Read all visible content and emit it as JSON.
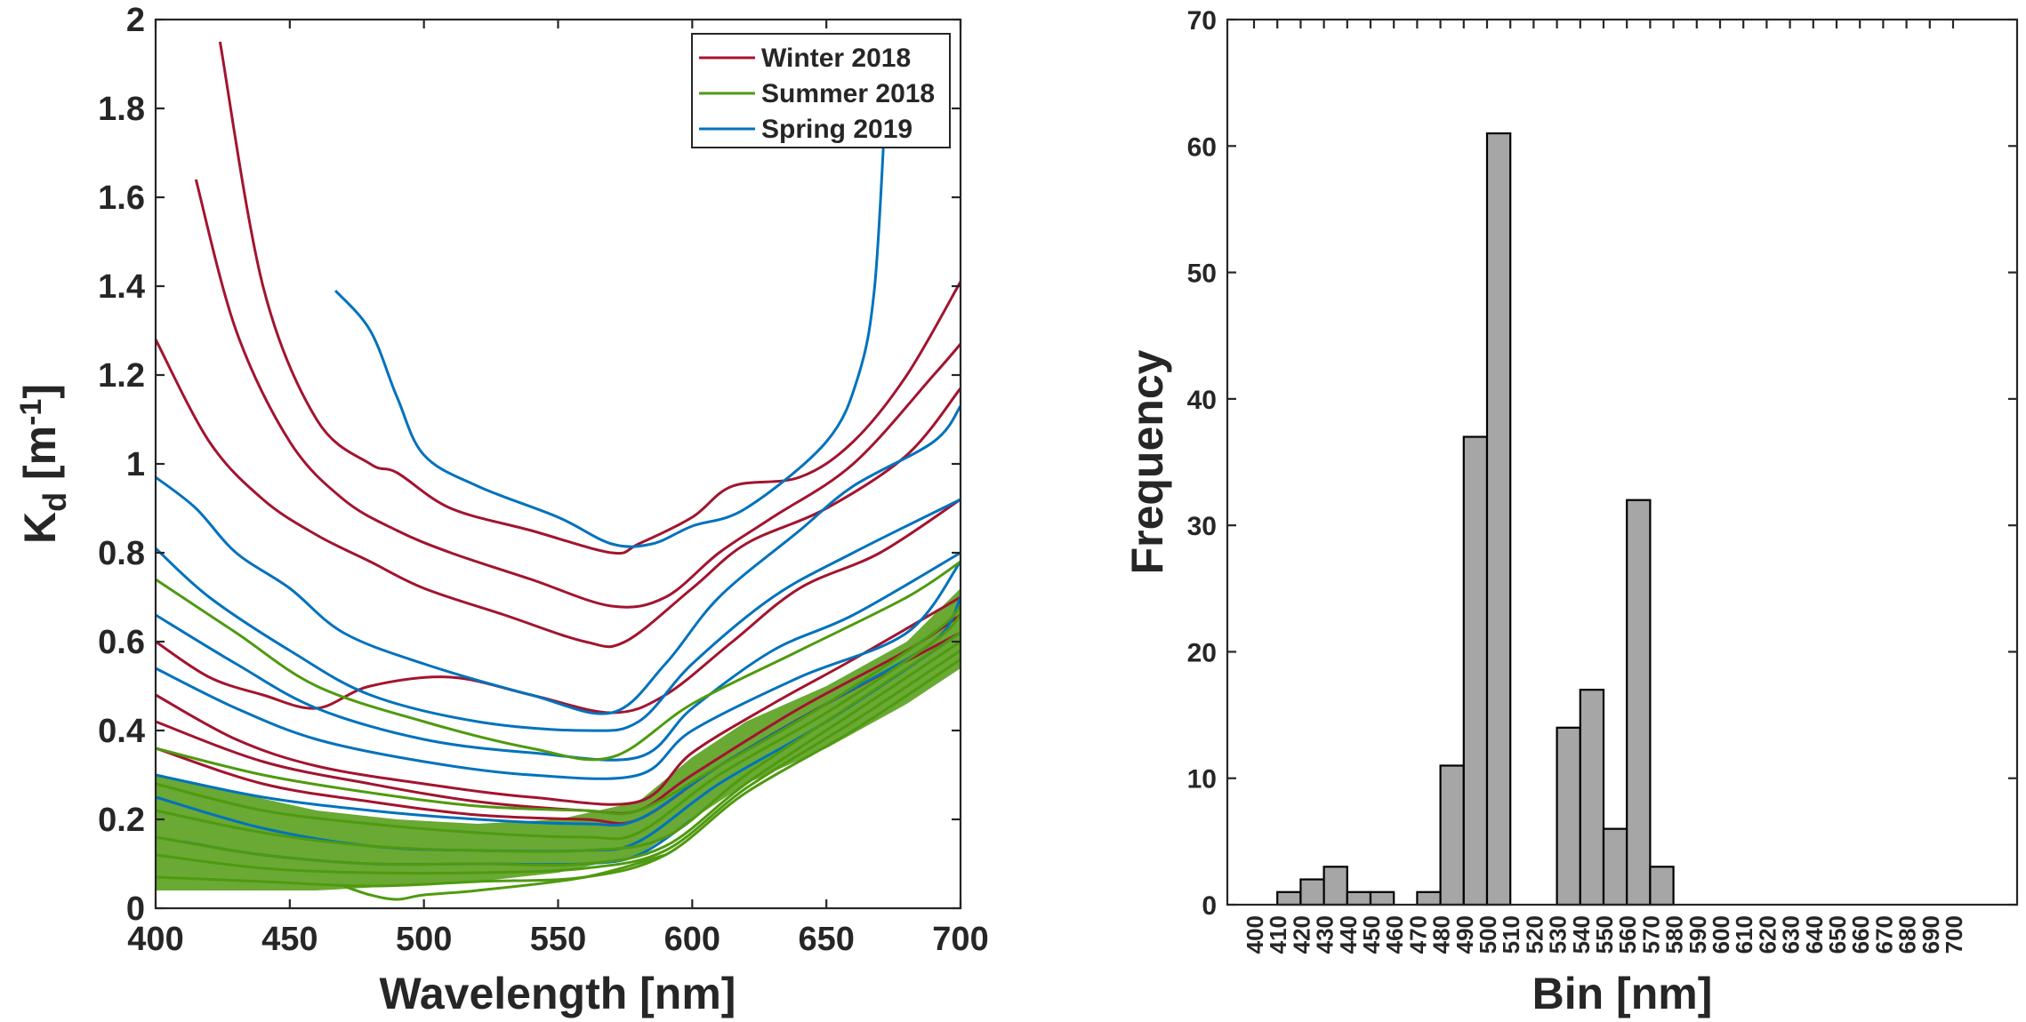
{
  "chart_data": [
    {
      "type": "line",
      "title": "",
      "xlabel": "Wavelength [nm]",
      "ylabel_main": "K",
      "ylabel_sub": "d",
      "ylabel_unit_open": " [m",
      "ylabel_unit_sup": "-1",
      "ylabel_unit_close": "]",
      "xlim": [
        400,
        700
      ],
      "ylim": [
        0,
        2
      ],
      "xticks": [
        400,
        450,
        500,
        550,
        600,
        650,
        700
      ],
      "yticks": [
        0,
        0.2,
        0.4,
        0.6,
        0.8,
        1,
        1.2,
        1.4,
        1.6,
        1.8,
        2
      ],
      "ytick_labels": [
        "0",
        "0.2",
        "0.4",
        "0.6",
        "0.8",
        "1",
        "1.2",
        "1.4",
        "1.6",
        "1.8",
        "2"
      ],
      "legend_position": "top-right",
      "series": [
        {
          "name": "Winter 2018",
          "color": "#A2142F"
        },
        {
          "name": "Summer 2018",
          "color": "#4F9A10"
        },
        {
          "name": "Spring 2019",
          "color": "#0072BD"
        }
      ],
      "curves": [
        {
          "series": 0,
          "x": [
            424,
            440,
            460,
            480,
            490,
            510,
            540,
            570,
            580,
            600,
            615,
            640,
            660,
            680,
            700
          ],
          "y": [
            1.95,
            1.4,
            1.1,
            1.0,
            0.98,
            0.9,
            0.85,
            0.8,
            0.82,
            0.88,
            0.95,
            0.97,
            1.05,
            1.2,
            1.41
          ]
        },
        {
          "series": 0,
          "x": [
            415,
            430,
            450,
            470,
            490,
            510,
            540,
            570,
            590,
            610,
            630,
            660,
            690,
            700
          ],
          "y": [
            1.64,
            1.3,
            1.05,
            0.92,
            0.85,
            0.8,
            0.74,
            0.68,
            0.7,
            0.8,
            0.88,
            1.0,
            1.2,
            1.27
          ]
        },
        {
          "series": 0,
          "x": [
            400,
            420,
            440,
            460,
            480,
            500,
            530,
            560,
            575,
            600,
            620,
            650,
            680,
            700
          ],
          "y": [
            1.28,
            1.05,
            0.92,
            0.84,
            0.78,
            0.72,
            0.66,
            0.6,
            0.6,
            0.72,
            0.82,
            0.9,
            1.02,
            1.17
          ]
        },
        {
          "series": 0,
          "x": [
            400,
            420,
            440,
            460,
            480,
            510,
            540,
            570,
            590,
            615,
            640,
            670,
            700
          ],
          "y": [
            0.6,
            0.52,
            0.48,
            0.45,
            0.5,
            0.52,
            0.48,
            0.44,
            0.48,
            0.6,
            0.72,
            0.8,
            0.92
          ]
        },
        {
          "series": 0,
          "x": [
            400,
            430,
            460,
            500,
            540,
            580,
            600,
            630,
            660,
            700
          ],
          "y": [
            0.48,
            0.38,
            0.32,
            0.28,
            0.25,
            0.24,
            0.35,
            0.46,
            0.56,
            0.7
          ]
        },
        {
          "series": 0,
          "x": [
            400,
            440,
            480,
            520,
            560,
            580,
            600,
            640,
            680,
            700
          ],
          "y": [
            0.42,
            0.33,
            0.28,
            0.24,
            0.22,
            0.22,
            0.3,
            0.45,
            0.58,
            0.66
          ]
        },
        {
          "series": 0,
          "x": [
            400,
            440,
            480,
            520,
            560,
            580,
            610,
            650,
            700
          ],
          "y": [
            0.36,
            0.28,
            0.24,
            0.21,
            0.2,
            0.2,
            0.32,
            0.46,
            0.62
          ]
        },
        {
          "series": 2,
          "x": [
            467,
            480,
            490,
            500,
            520,
            550,
            570,
            585,
            600,
            620,
            650,
            662,
            668,
            672
          ],
          "y": [
            1.39,
            1.3,
            1.15,
            1.02,
            0.95,
            0.88,
            0.82,
            0.82,
            0.86,
            0.9,
            1.05,
            1.2,
            1.4,
            1.8
          ]
        },
        {
          "series": 2,
          "x": [
            400,
            415,
            430,
            450,
            470,
            500,
            540,
            570,
            590,
            610,
            640,
            660,
            690,
            700
          ],
          "y": [
            0.97,
            0.9,
            0.8,
            0.72,
            0.62,
            0.55,
            0.48,
            0.44,
            0.55,
            0.7,
            0.85,
            0.95,
            1.05,
            1.13
          ]
        },
        {
          "series": 2,
          "x": [
            400,
            420,
            450,
            480,
            520,
            560,
            580,
            600,
            630,
            660,
            700
          ],
          "y": [
            0.81,
            0.7,
            0.58,
            0.48,
            0.42,
            0.4,
            0.42,
            0.55,
            0.7,
            0.8,
            0.92
          ]
        },
        {
          "series": 2,
          "x": [
            400,
            430,
            460,
            500,
            540,
            580,
            600,
            630,
            660,
            700
          ],
          "y": [
            0.66,
            0.55,
            0.45,
            0.38,
            0.35,
            0.34,
            0.45,
            0.58,
            0.66,
            0.8
          ]
        },
        {
          "series": 2,
          "x": [
            400,
            430,
            460,
            500,
            540,
            580,
            600,
            640,
            680,
            700
          ],
          "y": [
            0.54,
            0.45,
            0.38,
            0.33,
            0.3,
            0.3,
            0.4,
            0.52,
            0.62,
            0.78
          ]
        },
        {
          "series": 2,
          "x": [
            400,
            440,
            480,
            520,
            560,
            580,
            610,
            650,
            690,
            700
          ],
          "y": [
            0.3,
            0.25,
            0.22,
            0.2,
            0.19,
            0.2,
            0.32,
            0.46,
            0.6,
            0.7
          ]
        },
        {
          "series": 2,
          "x": [
            400,
            440,
            480,
            520,
            560,
            580,
            610,
            650,
            700
          ],
          "y": [
            0.25,
            0.18,
            0.14,
            0.13,
            0.13,
            0.15,
            0.28,
            0.42,
            0.62
          ]
        },
        {
          "series": 2,
          "x": [
            410,
            440,
            480,
            520,
            560,
            580,
            600
          ],
          "y": [
            0.15,
            0.12,
            0.1,
            0.1,
            0.1,
            0.12,
            0.2
          ]
        },
        {
          "series": 1,
          "x": [
            400,
            430,
            460,
            500,
            540,
            570,
            600,
            640,
            680,
            700
          ],
          "y": [
            0.74,
            0.62,
            0.5,
            0.42,
            0.36,
            0.34,
            0.46,
            0.58,
            0.7,
            0.78
          ]
        },
        {
          "series": 1,
          "x": [
            400,
            440,
            480,
            520,
            560,
            580,
            610,
            650,
            690,
            700
          ],
          "y": [
            0.36,
            0.3,
            0.26,
            0.23,
            0.22,
            0.22,
            0.32,
            0.46,
            0.62,
            0.68
          ]
        },
        {
          "series": 1,
          "x": [
            400,
            440,
            480,
            520,
            560,
            580,
            610,
            650,
            690,
            700
          ],
          "y": [
            0.28,
            0.22,
            0.19,
            0.17,
            0.16,
            0.17,
            0.3,
            0.44,
            0.6,
            0.66
          ]
        },
        {
          "series": 1,
          "x": [
            400,
            440,
            480,
            520,
            560,
            590,
            620,
            660,
            700
          ],
          "y": [
            0.22,
            0.17,
            0.14,
            0.13,
            0.13,
            0.16,
            0.3,
            0.46,
            0.62
          ]
        },
        {
          "series": 1,
          "x": [
            400,
            440,
            480,
            520,
            560,
            590,
            620,
            660,
            700
          ],
          "y": [
            0.16,
            0.12,
            0.1,
            0.1,
            0.1,
            0.14,
            0.28,
            0.44,
            0.6
          ]
        },
        {
          "series": 1,
          "x": [
            400,
            440,
            480,
            520,
            560,
            590,
            620,
            660,
            700
          ],
          "y": [
            0.12,
            0.09,
            0.08,
            0.08,
            0.09,
            0.13,
            0.27,
            0.42,
            0.58
          ]
        },
        {
          "series": 1,
          "x": [
            400,
            440,
            480,
            520,
            560,
            590,
            620,
            660,
            700
          ],
          "y": [
            0.07,
            0.06,
            0.05,
            0.06,
            0.07,
            0.12,
            0.26,
            0.4,
            0.56
          ]
        },
        {
          "series": 1,
          "x": [
            470,
            480,
            490,
            500,
            520,
            560,
            590
          ],
          "y": [
            0.05,
            0.03,
            0.02,
            0.03,
            0.04,
            0.07,
            0.12
          ]
        }
      ],
      "band": {
        "series": 1,
        "x": [
          400,
          430,
          460,
          490,
          520,
          550,
          580,
          600,
          620,
          650,
          680,
          700
        ],
        "lower": [
          0.04,
          0.04,
          0.04,
          0.05,
          0.06,
          0.08,
          0.12,
          0.2,
          0.28,
          0.36,
          0.46,
          0.54
        ],
        "upper": [
          0.3,
          0.26,
          0.22,
          0.2,
          0.19,
          0.2,
          0.24,
          0.34,
          0.42,
          0.5,
          0.6,
          0.72
        ]
      }
    },
    {
      "type": "bar",
      "title": "",
      "xlabel": "Bin [nm]",
      "ylabel": "Frequency",
      "ylim": [
        0,
        70
      ],
      "yticks": [
        0,
        10,
        20,
        30,
        40,
        50,
        60,
        70
      ],
      "categories": [
        "400",
        "410",
        "420",
        "430",
        "440",
        "450",
        "460",
        "470",
        "480",
        "490",
        "500",
        "510",
        "520",
        "530",
        "540",
        "550",
        "560",
        "570",
        "580",
        "590",
        "600",
        "610",
        "620",
        "630",
        "640",
        "650",
        "660",
        "670",
        "680",
        "690",
        "700"
      ],
      "bar_values": [
        {
          "left": "410",
          "value": 1
        },
        {
          "left": "420",
          "value": 2
        },
        {
          "left": "430",
          "value": 3
        },
        {
          "left": "440",
          "value": 1
        },
        {
          "left": "450",
          "value": 1
        },
        {
          "left": "470",
          "value": 1
        },
        {
          "left": "480",
          "value": 11
        },
        {
          "left": "490",
          "value": 37
        },
        {
          "left": "500",
          "value": 61
        },
        {
          "left": "530",
          "value": 14
        },
        {
          "left": "540",
          "value": 17
        },
        {
          "left": "550",
          "value": 6
        },
        {
          "left": "560",
          "value": 32
        },
        {
          "left": "570",
          "value": 3
        }
      ],
      "bar_color": "#A6A6A6"
    }
  ]
}
